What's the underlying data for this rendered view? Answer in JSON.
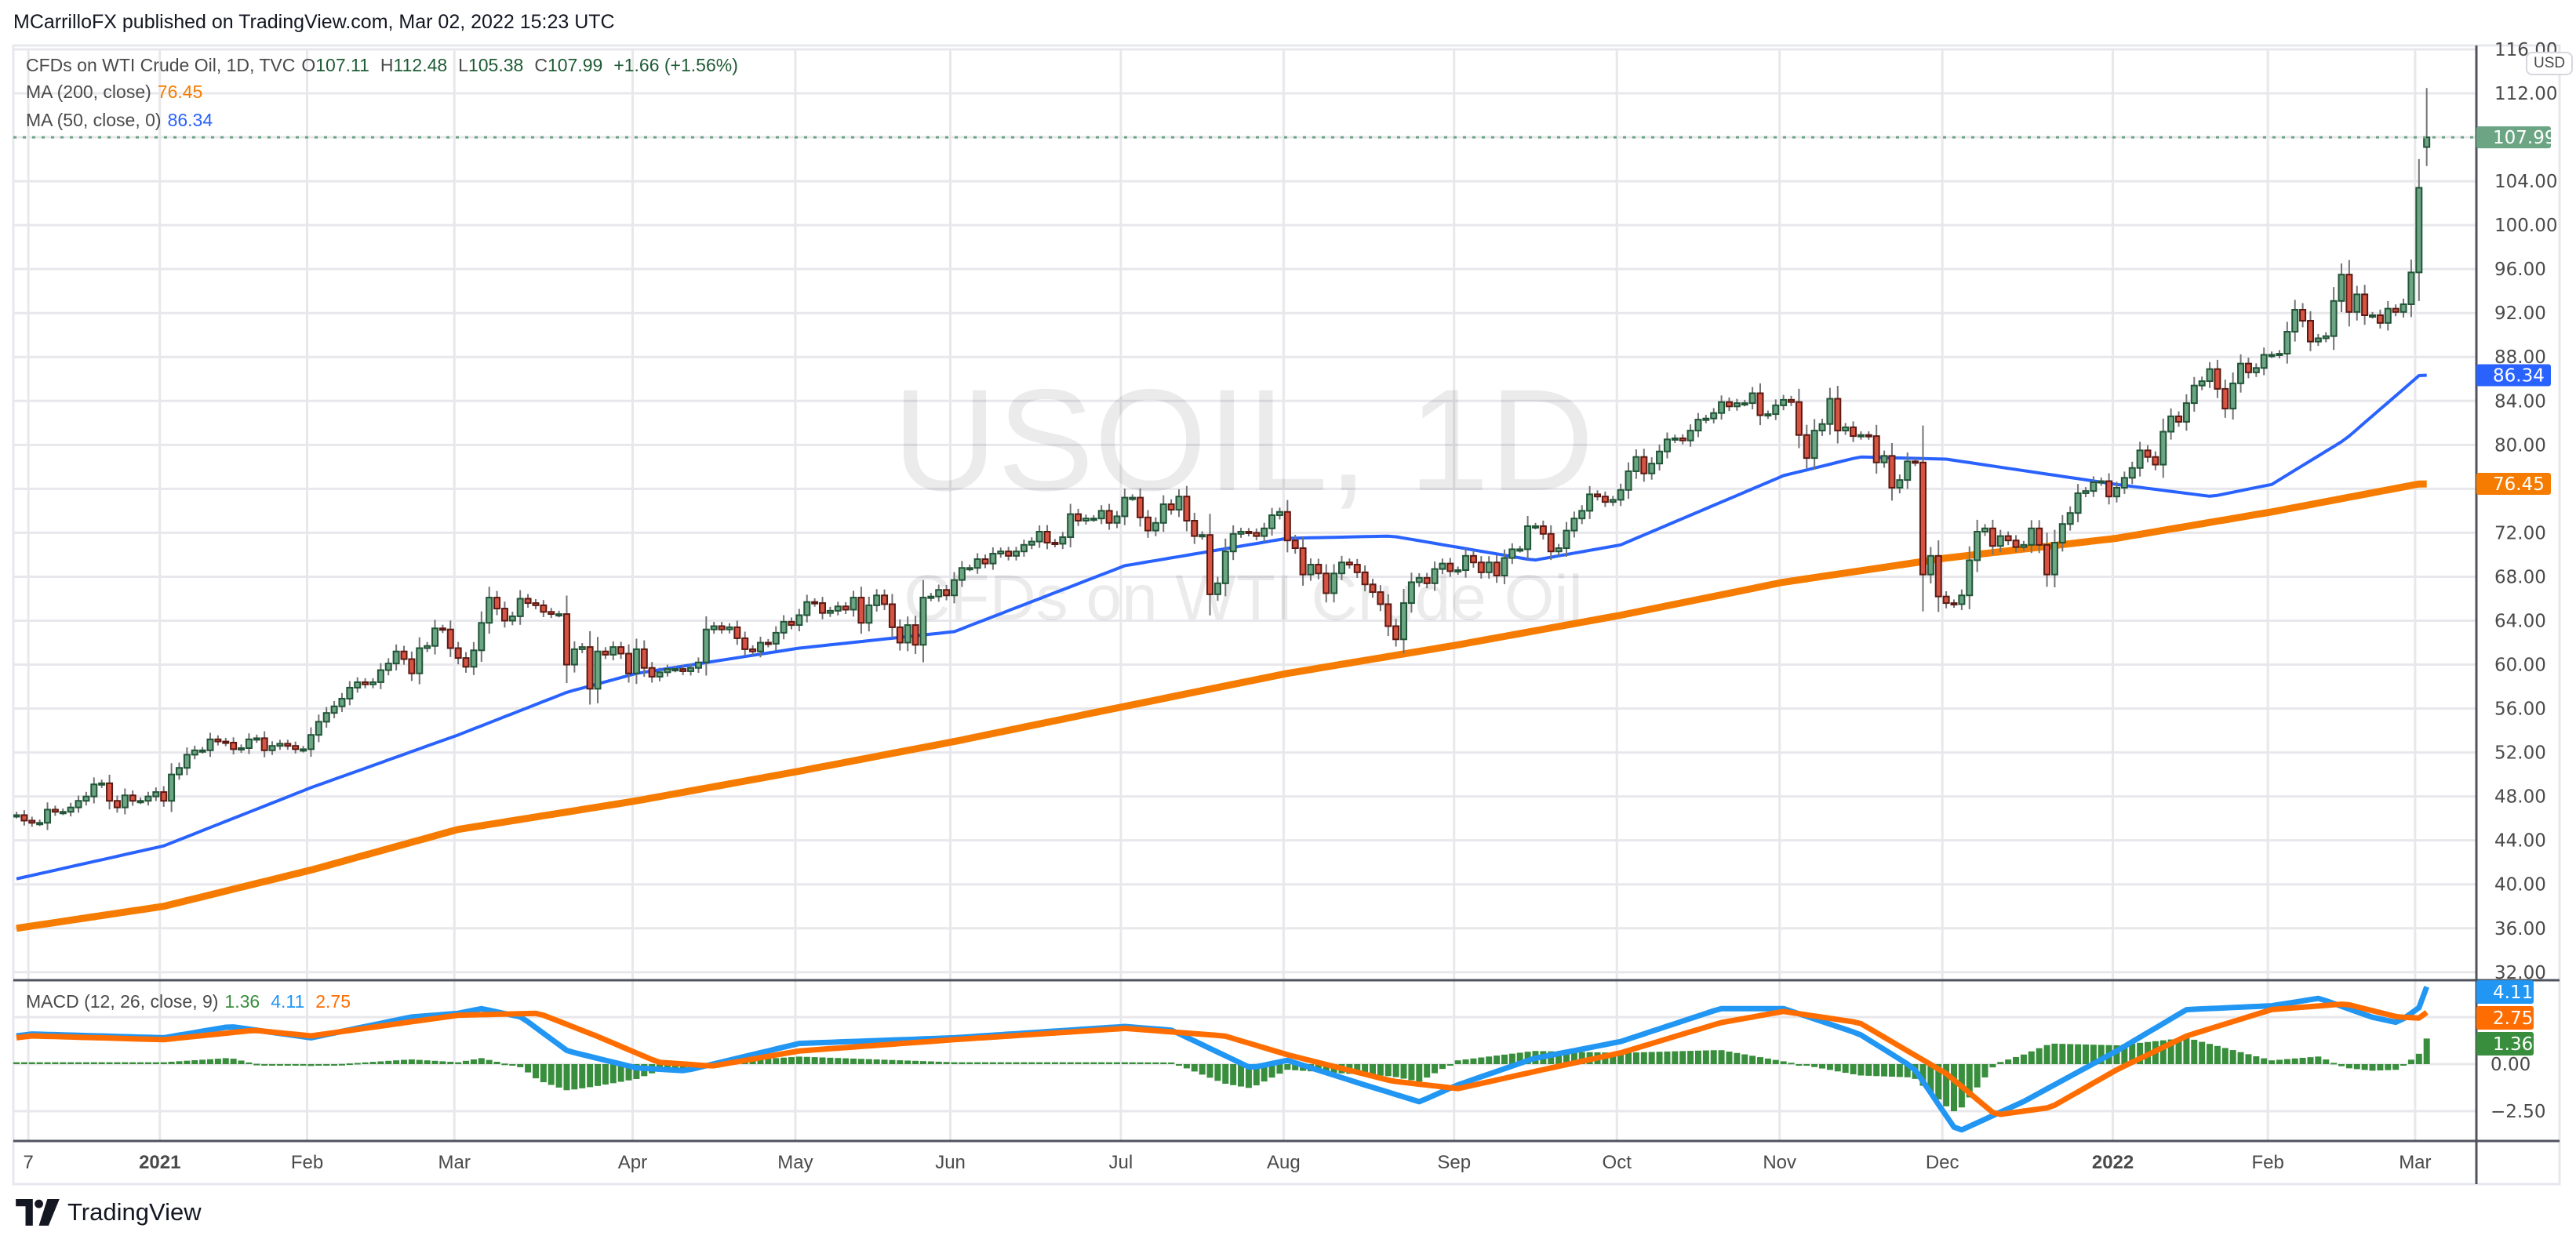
{
  "header": {
    "title": "MCarrilloFX published on TradingView.com, Mar 02, 2022 15:23 UTC"
  },
  "legend": {
    "symbol": "CFDs on WTI Crude Oil, 1D, TVC",
    "o_label": "O",
    "o": "107.11",
    "h_label": "H",
    "h": "112.48",
    "l_label": "L",
    "l": "105.38",
    "c_label": "C",
    "c": "107.99",
    "change": "+1.66 (+1.56%)",
    "ma200_label": "MA (200, close)",
    "ma200_value": "76.45",
    "ma50_label": "MA (50, close, 0)",
    "ma50_value": "86.34",
    "macd_label": "MACD (12, 26, close, 9)",
    "macd_hist": "1.36",
    "macd_line": "4.11",
    "macd_signal": "2.75"
  },
  "watermark": {
    "main": "USOIL, 1D",
    "sub": "CFDs on WTI Crude Oil"
  },
  "currency": "USD",
  "footer": {
    "brand": "TradingView"
  },
  "colors": {
    "up_body": "#6ba583",
    "up_border": "#225437",
    "down_body": "#d75442",
    "down_border": "#5b1a13",
    "wick": "#737375",
    "ma200": "#f57c00",
    "ma50": "#2962ff",
    "macd": "#2196f3",
    "signal": "#ff6d00",
    "histogram": "#388e3c",
    "last_price": "#6ba583",
    "value_green": "#1e5b34"
  },
  "chart_data": {
    "type": "candlestick",
    "y_ticks": [
      "116.00",
      "112.00",
      "108.00",
      "104.00",
      "100.00",
      "96.00",
      "92.00",
      "88.00",
      "84.00",
      "80.00",
      "76.00",
      "72.00",
      "68.00",
      "64.00",
      "60.00",
      "56.00",
      "52.00",
      "48.00",
      "44.00",
      "40.00",
      "36.00",
      "32.00"
    ],
    "hidden_ticks": [
      "108.00",
      "76.00"
    ],
    "ylim": [
      32,
      116
    ],
    "price_tags": [
      {
        "label": "107.99",
        "value": 107.99,
        "color": "#6ba583"
      },
      {
        "label": "86.34",
        "value": 86.34,
        "color": "#2962ff"
      },
      {
        "label": "76.45",
        "value": 76.45,
        "color": "#f57c00"
      }
    ],
    "x_labels": [
      {
        "label": "7",
        "date": "2020-12-07"
      },
      {
        "label": "2021",
        "date": "2021-01-01",
        "bold": true
      },
      {
        "label": "Feb",
        "date": "2021-02-01"
      },
      {
        "label": "Mar",
        "date": "2021-03-01"
      },
      {
        "label": "Apr",
        "date": "2021-04-01"
      },
      {
        "label": "May",
        "date": "2021-05-01"
      },
      {
        "label": "Jun",
        "date": "2021-06-01"
      },
      {
        "label": "Jul",
        "date": "2021-07-01"
      },
      {
        "label": "Aug",
        "date": "2021-08-01"
      },
      {
        "label": "Sep",
        "date": "2021-09-01"
      },
      {
        "label": "Oct",
        "date": "2021-10-01"
      },
      {
        "label": "Nov",
        "date": "2021-11-01"
      },
      {
        "label": "Dec",
        "date": "2021-12-01"
      },
      {
        "label": "2022",
        "date": "2022-01-01",
        "bold": true
      },
      {
        "label": "Feb",
        "date": "2022-02-01"
      },
      {
        "label": "Mar",
        "date": "2022-03-01"
      }
    ],
    "candles_by_month": [
      {
        "month": "2020-12",
        "first_day": 4,
        "closes": [
          46.3,
          45.8,
          45.6,
          45.6,
          46.8,
          46.6,
          46.6,
          47.0,
          47.6,
          48.0,
          49.1,
          49.2,
          47.6,
          47.0,
          48.1,
          47.6,
          47.6,
          48.0,
          48.4
        ]
      },
      {
        "month": "2021-01",
        "closes": [
          47.6,
          50.0,
          50.6,
          51.8,
          52.2,
          52.2,
          53.2,
          53.0,
          52.9,
          52.3,
          52.4,
          53.2,
          53.3,
          52.2,
          52.6,
          52.8,
          52.6,
          52.3,
          52.3
        ]
      },
      {
        "month": "2021-02",
        "closes": [
          53.6,
          54.8,
          55.6,
          56.2,
          56.9,
          57.9,
          58.4,
          58.2,
          58.4,
          59.5,
          60.1,
          61.2,
          60.5,
          59.2,
          61.5,
          61.7,
          63.3,
          63.2,
          61.5
        ]
      },
      {
        "month": "2021-03",
        "closes": [
          60.6,
          59.8,
          61.3,
          63.8,
          66.1,
          65.1,
          64.0,
          64.4,
          66.0,
          65.6,
          65.4,
          64.8,
          64.6,
          64.6,
          60.0,
          61.4,
          61.6,
          57.8,
          61.2,
          60.9,
          61.6,
          61.0,
          59.2
        ]
      },
      {
        "month": "2021-04",
        "closes": [
          61.4,
          59.7,
          58.9,
          59.3,
          59.6,
          59.6,
          59.4,
          59.7,
          60.2,
          63.2,
          63.5,
          63.2,
          63.4,
          62.4,
          61.4,
          61.2,
          62.0,
          61.9,
          62.9,
          63.9,
          63.6
        ]
      },
      {
        "month": "2021-05",
        "closes": [
          64.5,
          65.7,
          65.6,
          64.7,
          64.9,
          65.3,
          65.0,
          66.1,
          63.8,
          65.4,
          66.3,
          65.5,
          63.4,
          62.0,
          63.6,
          61.8,
          66.1,
          66.2,
          66.8,
          66.3
        ]
      },
      {
        "month": "2021-06",
        "closes": [
          67.7,
          68.8,
          68.8,
          69.6,
          69.2,
          70.1,
          70.3,
          69.9,
          70.3,
          70.9,
          71.2,
          72.1,
          71.1,
          71.0,
          71.6,
          73.7,
          73.1,
          73.3,
          73.3,
          74.0,
          72.9,
          73.5
        ]
      },
      {
        "month": "2021-07",
        "closes": [
          75.2,
          75.2,
          73.4,
          72.2,
          72.9,
          74.6,
          74.1,
          75.3,
          73.1,
          71.7,
          71.8,
          66.4,
          67.4,
          70.3,
          71.9,
          72.1,
          72.0,
          71.7,
          72.4,
          73.6,
          73.9
        ]
      },
      {
        "month": "2021-08",
        "closes": [
          71.3,
          70.6,
          68.2,
          69.1,
          68.3,
          66.5,
          68.3,
          69.3,
          69.1,
          68.4,
          67.3,
          66.6,
          65.5,
          63.5,
          62.3,
          65.6,
          67.5,
          67.9,
          67.4,
          68.7,
          69.2,
          68.5
        ]
      },
      {
        "month": "2021-09",
        "closes": [
          68.6,
          69.9,
          69.3,
          68.4,
          69.3,
          68.1,
          69.7,
          70.5,
          70.5,
          72.6,
          72.6,
          71.9,
          70.3,
          70.6,
          72.2,
          73.3,
          74.0,
          75.5,
          75.3,
          74.8,
          75.0
        ]
      },
      {
        "month": "2021-10",
        "closes": [
          75.9,
          77.6,
          78.9,
          77.4,
          78.3,
          79.4,
          80.5,
          80.6,
          80.4,
          81.3,
          82.3,
          82.4,
          82.9,
          83.9,
          83.5,
          83.8,
          83.8,
          84.7,
          82.7,
          82.8,
          83.6
        ]
      },
      {
        "month": "2021-11",
        "closes": [
          84.1,
          83.9,
          80.9,
          78.8,
          81.3,
          81.9,
          84.2,
          81.3,
          81.6,
          80.8,
          80.9,
          80.8,
          78.4,
          79.0,
          76.1,
          76.8,
          78.5,
          78.4,
          68.2,
          69.9,
          66.2
        ]
      },
      {
        "month": "2021-12",
        "closes": [
          65.6,
          65.5,
          66.3,
          69.5,
          72.1,
          72.4,
          70.8,
          71.7,
          71.3,
          70.7,
          70.9,
          72.4,
          70.9,
          68.2,
          71.1,
          72.8,
          73.8,
          75.6,
          75.8,
          76.6,
          76.7,
          75.3
        ]
      },
      {
        "month": "2022-01",
        "closes": [
          76.1,
          77.0,
          77.9,
          79.5,
          78.9,
          78.2,
          81.2,
          82.6,
          82.1,
          83.8,
          85.4,
          85.8,
          86.9,
          85.1,
          83.3,
          85.6,
          87.4,
          86.6,
          87.0,
          88.2
        ]
      },
      {
        "month": "2022-02",
        "closes": [
          88.2,
          88.3,
          90.3,
          92.3,
          91.3,
          89.4,
          89.7,
          89.9,
          93.1,
          95.5,
          92.1,
          93.7,
          91.8,
          91.8,
          91.1,
          92.4,
          92.1,
          92.8,
          95.7
        ]
      },
      {
        "month": "2022-03",
        "closes": [
          103.4,
          107.99
        ]
      }
    ],
    "last_candle": {
      "o": 107.11,
      "h": 112.48,
      "l": 105.38,
      "c": 107.99
    },
    "ma200": [
      [
        "2020-12-04",
        36.0
      ],
      [
        "2021-01-01",
        38.0
      ],
      [
        "2021-02-01",
        41.3
      ],
      [
        "2021-03-01",
        45.0
      ],
      [
        "2021-04-01",
        47.6
      ],
      [
        "2021-05-01",
        50.3
      ],
      [
        "2021-06-01",
        53.0
      ],
      [
        "2021-07-01",
        56.2
      ],
      [
        "2021-08-01",
        59.2
      ],
      [
        "2021-09-01",
        61.8
      ],
      [
        "2021-10-01",
        64.5
      ],
      [
        "2021-11-01",
        67.5
      ],
      [
        "2021-12-01",
        69.7
      ],
      [
        "2022-01-01",
        71.5
      ],
      [
        "2022-02-01",
        73.9
      ],
      [
        "2022-03-02",
        76.45
      ]
    ],
    "ma50": [
      [
        "2020-12-04",
        40.5
      ],
      [
        "2021-01-01",
        43.5
      ],
      [
        "2021-02-01",
        48.8
      ],
      [
        "2021-03-01",
        53.6
      ],
      [
        "2021-03-20",
        57.5
      ],
      [
        "2021-04-01",
        59.2
      ],
      [
        "2021-05-01",
        61.5
      ],
      [
        "2021-06-01",
        63.0
      ],
      [
        "2021-07-01",
        69.0
      ],
      [
        "2021-08-01",
        71.5
      ],
      [
        "2021-08-20",
        71.7
      ],
      [
        "2021-09-15",
        69.5
      ],
      [
        "2021-10-01",
        70.9
      ],
      [
        "2021-11-01",
        77.2
      ],
      [
        "2021-11-15",
        78.9
      ],
      [
        "2021-12-01",
        78.7
      ],
      [
        "2022-01-01",
        76.4
      ],
      [
        "2022-01-20",
        75.3
      ],
      [
        "2022-02-01",
        76.4
      ],
      [
        "2022-02-15",
        80.5
      ],
      [
        "2022-03-02",
        86.34
      ]
    ],
    "macd_ticks": [
      "0.00",
      "-2.50"
    ],
    "macd_tags": [
      {
        "label": "4.11",
        "color": "#2196f3"
      },
      {
        "label": "2.75",
        "color": "#ff6d00"
      },
      {
        "label": "1.36",
        "color": "#388e3c"
      }
    ],
    "macd": [
      [
        "2020-12-04",
        1.5
      ],
      [
        "2020-12-07",
        1.6
      ],
      [
        "2021-01-01",
        1.4
      ],
      [
        "2021-01-15",
        2.0
      ],
      [
        "2021-02-01",
        1.4
      ],
      [
        "2021-02-20",
        2.5
      ],
      [
        "2021-03-01",
        2.7
      ],
      [
        "2021-03-05",
        2.95
      ],
      [
        "2021-03-12",
        2.5
      ],
      [
        "2021-03-20",
        0.7
      ],
      [
        "2021-04-01",
        -0.2
      ],
      [
        "2021-04-10",
        -0.35
      ],
      [
        "2021-05-01",
        1.1
      ],
      [
        "2021-06-01",
        1.4
      ],
      [
        "2021-07-01",
        2.0
      ],
      [
        "2021-07-10",
        1.8
      ],
      [
        "2021-07-25",
        -0.2
      ],
      [
        "2021-08-01",
        0.2
      ],
      [
        "2021-08-15",
        -1.1
      ],
      [
        "2021-08-25",
        -2.0
      ],
      [
        "2021-09-01",
        -1.1
      ],
      [
        "2021-09-15",
        0.3
      ],
      [
        "2021-10-01",
        1.2
      ],
      [
        "2021-10-20",
        2.95
      ],
      [
        "2021-11-01",
        2.95
      ],
      [
        "2021-11-15",
        1.6
      ],
      [
        "2021-11-25",
        -0.2
      ],
      [
        "2021-12-03",
        -3.6
      ],
      [
        "2021-12-15",
        -2.0
      ],
      [
        "2022-01-01",
        0.7
      ],
      [
        "2022-01-15",
        2.9
      ],
      [
        "2022-02-01",
        3.1
      ],
      [
        "2022-02-10",
        3.5
      ],
      [
        "2022-02-20",
        2.5
      ],
      [
        "2022-02-25",
        2.2
      ],
      [
        "2022-03-01",
        3.0
      ],
      [
        "2022-03-02",
        4.11
      ]
    ],
    "signal": [
      [
        "2020-12-04",
        1.4
      ],
      [
        "2020-12-07",
        1.5
      ],
      [
        "2021-01-01",
        1.3
      ],
      [
        "2021-01-20",
        1.8
      ],
      [
        "2021-02-01",
        1.5
      ],
      [
        "2021-03-01",
        2.6
      ],
      [
        "2021-03-15",
        2.7
      ],
      [
        "2021-03-25",
        1.5
      ],
      [
        "2021-04-05",
        0.1
      ],
      [
        "2021-04-15",
        -0.1
      ],
      [
        "2021-05-01",
        0.7
      ],
      [
        "2021-06-01",
        1.3
      ],
      [
        "2021-07-01",
        1.9
      ],
      [
        "2021-07-20",
        1.5
      ],
      [
        "2021-08-01",
        0.5
      ],
      [
        "2021-08-20",
        -0.9
      ],
      [
        "2021-09-01",
        -1.3
      ],
      [
        "2021-09-15",
        -0.4
      ],
      [
        "2021-10-01",
        0.6
      ],
      [
        "2021-10-20",
        2.2
      ],
      [
        "2021-11-01",
        2.8
      ],
      [
        "2021-11-15",
        2.2
      ],
      [
        "2021-12-01",
        -0.5
      ],
      [
        "2021-12-10",
        -2.7
      ],
      [
        "2021-12-20",
        -2.3
      ],
      [
        "2022-01-01",
        -0.3
      ],
      [
        "2022-01-15",
        1.5
      ],
      [
        "2022-02-01",
        2.9
      ],
      [
        "2022-02-15",
        3.2
      ],
      [
        "2022-02-25",
        2.5
      ],
      [
        "2022-03-01",
        2.45
      ],
      [
        "2022-03-02",
        2.75
      ]
    ]
  }
}
